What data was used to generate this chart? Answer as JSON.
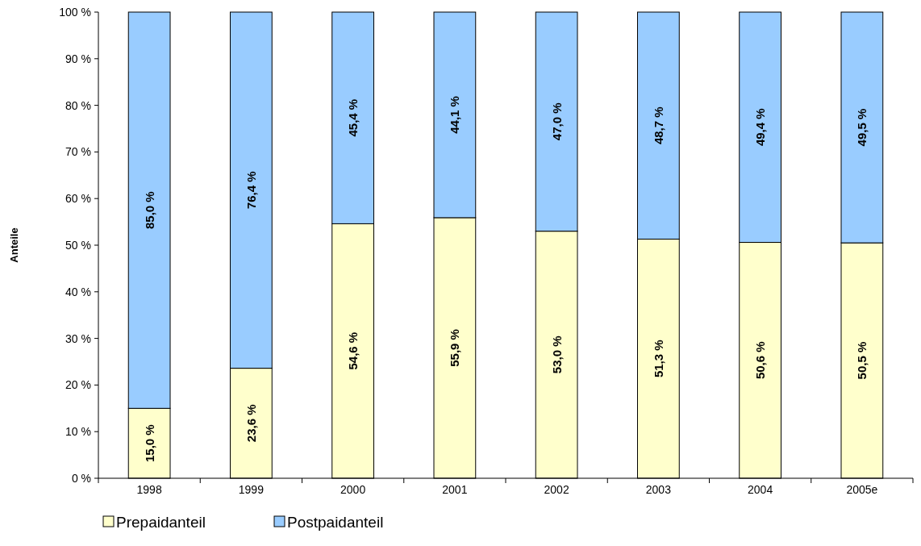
{
  "chart_data": {
    "type": "bar",
    "stacked": true,
    "ylabel": "Anteile",
    "categories": [
      "1998",
      "1999",
      "2000",
      "2001",
      "2002",
      "2003",
      "2004",
      "2005e"
    ],
    "series": [
      {
        "name": "Prepaidanteil",
        "color": "#ffffcc",
        "values": [
          15.0,
          23.6,
          54.6,
          55.9,
          53.0,
          51.3,
          50.6,
          50.5
        ],
        "value_labels": [
          "15,0 %",
          "23,6 %",
          "54,6 %",
          "55,9 %",
          "53,0 %",
          "51,3 %",
          "50,6 %",
          "50,5 %"
        ]
      },
      {
        "name": "Postpaidanteil",
        "color": "#99ccff",
        "values": [
          85.0,
          76.4,
          45.4,
          44.1,
          47.0,
          48.7,
          49.4,
          49.5
        ],
        "value_labels": [
          "85,0 %",
          "76,4 %",
          "45,4 %",
          "44,1 %",
          "47,0 %",
          "48,7 %",
          "49,4 %",
          "49,5 %"
        ]
      }
    ],
    "ylim": [
      0,
      100
    ],
    "yticks": [
      {
        "value": 0,
        "label": "0 %"
      },
      {
        "value": 10,
        "label": "10 %"
      },
      {
        "value": 20,
        "label": "20 %"
      },
      {
        "value": 30,
        "label": "30 %"
      },
      {
        "value": 40,
        "label": "40 %"
      },
      {
        "value": 50,
        "label": "50 %"
      },
      {
        "value": 60,
        "label": "60 %"
      },
      {
        "value": 70,
        "label": "70 %"
      },
      {
        "value": 80,
        "label": "80 %"
      },
      {
        "value": 90,
        "label": "90 %"
      },
      {
        "value": 100,
        "label": "100 %"
      }
    ],
    "grid": false,
    "legend": "bottom left"
  }
}
